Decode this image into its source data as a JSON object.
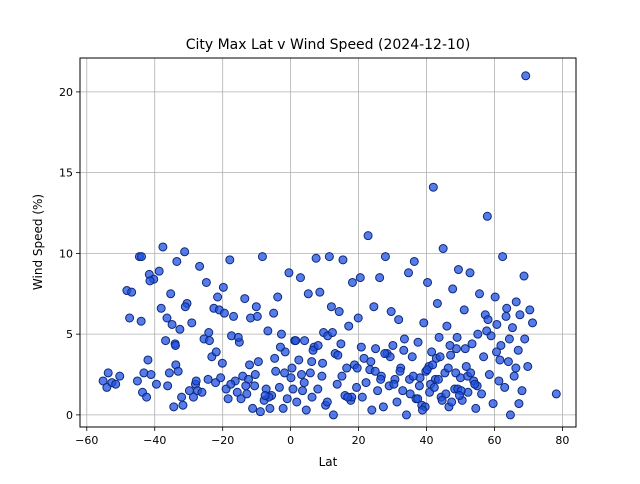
{
  "chart_data": {
    "type": "scatter",
    "title": "City Max Lat v Wind Speed (2024-12-10)",
    "xlabel": "Lat",
    "ylabel": "Wind Speed (%)",
    "xlim": [
      -62,
      84
    ],
    "ylim": [
      -0.75,
      22.1
    ],
    "xticks": [
      -60,
      -40,
      -20,
      0,
      20,
      40,
      60,
      80
    ],
    "yticks": [
      0,
      5,
      10,
      15,
      20
    ],
    "grid": true,
    "legend": "none",
    "marker_face_color": "#1f4fe0",
    "marker_edge_color": "#0d2a7a",
    "x": [
      -55.2,
      -54.1,
      -52.6,
      -51.5,
      -50.3,
      -48.2,
      -47.4,
      -46.8,
      -45.1,
      -44.5,
      -44.0,
      -43.6,
      -43.2,
      -42.4,
      -42.0,
      -41.6,
      -41.1,
      -40.3,
      -39.5,
      -38.7,
      -38.1,
      -37.6,
      -36.8,
      -36.2,
      -35.7,
      -35.3,
      -34.9,
      -34.4,
      -34.0,
      -33.8,
      -33.5,
      -33.1,
      -32.6,
      -32.1,
      -31.7,
      -31.2,
      -30.5,
      -29.8,
      -29.1,
      -28.6,
      -28.0,
      -27.4,
      -26.8,
      -26.1,
      -25.5,
      -24.8,
      -24.3,
      -23.9,
      -23.2,
      -22.6,
      -22.1,
      -21.5,
      -21.0,
      -20.6,
      -20.1,
      -19.5,
      -19.0,
      -18.4,
      -17.9,
      -17.4,
      -16.8,
      -16.3,
      -15.7,
      -15.1,
      -14.6,
      -14.1,
      -13.5,
      -12.9,
      -12.4,
      -11.8,
      -11.2,
      -10.6,
      -10.1,
      -9.5,
      -8.9,
      -8.3,
      -7.8,
      -7.2,
      -6.7,
      -6.1,
      -5.6,
      -5.0,
      -4.4,
      -3.8,
      -3.3,
      -2.7,
      -2.2,
      -1.6,
      -1.0,
      -0.5,
      0.1,
      0.7,
      1.2,
      1.8,
      2.4,
      2.9,
      3.5,
      4.1,
      4.6,
      5.2,
      5.8,
      6.3,
      6.9,
      7.5,
      8.0,
      8.6,
      9.2,
      9.7,
      10.3,
      10.9,
      11.4,
      12.0,
      12.6,
      13.1,
      13.7,
      14.3,
      14.8,
      15.4,
      16.0,
      16.5,
      17.1,
      17.7,
      18.2,
      18.8,
      19.4,
      19.9,
      20.5,
      21.1,
      21.6,
      22.2,
      22.8,
      23.3,
      23.9,
      24.5,
      25.0,
      25.6,
      26.2,
      26.7,
      27.3,
      27.9,
      28.4,
      29.0,
      29.6,
      30.1,
      30.7,
      31.3,
      31.8,
      32.4,
      33.0,
      33.5,
      34.1,
      34.7,
      35.2,
      35.8,
      36.4,
      36.9,
      37.5,
      38.1,
      38.6,
      39.2,
      39.8,
      40.3,
      40.9,
      41.5,
      42.0,
      42.6,
      43.2,
      43.7,
      44.3,
      44.9,
      45.4,
      46.0,
      46.6,
      47.1,
      47.7,
      48.3,
      48.8,
      49.4,
      50.0,
      50.5,
      51.1,
      51.7,
      52.2,
      52.8,
      53.4,
      53.9,
      54.5,
      55.1,
      55.6,
      56.2,
      56.8,
      57.3,
      57.9,
      58.5,
      59.0,
      59.6,
      60.2,
      60.7,
      61.3,
      61.9,
      62.4,
      63.0,
      63.6,
      64.1,
      64.7,
      65.3,
      65.8,
      66.4,
      67.0,
      67.5,
      68.1,
      68.7,
      69.2,
      69.8,
      70.4,
      71.2,
      78.2,
      -53.7,
      -43.9,
      -41.4,
      -36.4,
      -33.9,
      -31.0,
      -27.8,
      -24.1,
      -21.9,
      -19.8,
      -17.6,
      -15.4,
      -12.1,
      -9.8,
      -6.4,
      -3.0,
      0.4,
      3.2,
      6.6,
      9.4,
      12.3,
      15.1,
      18.0,
      20.8,
      23.6,
      26.5,
      29.3,
      32.2,
      35.0,
      37.9,
      40.7,
      43.5,
      46.4,
      49.2,
      52.1,
      54.9,
      57.7,
      60.6,
      63.4,
      66.3,
      68.9,
      37.4,
      40.2,
      42.9,
      45.7,
      48.6,
      51.4,
      54.2,
      39.6,
      41.8,
      44.6,
      47.4,
      50.2,
      53.0,
      38.8,
      41.2,
      44.0,
      46.9,
      49.7,
      24.9,
      27.7,
      30.4,
      33.3,
      36.1,
      13.9,
      16.8,
      19.6,
      8.1,
      10.8,
      4.0,
      6.2,
      -1.8,
      1.5,
      -7.5,
      -4.7,
      -13.2,
      -10.4,
      58.1,
      61.6,
      64.4,
      67.2,
      42.3,
      49.0
    ],
    "y": [
      2.1,
      1.7,
      2.0,
      1.9,
      2.4,
      7.7,
      6.0,
      7.6,
      2.1,
      9.8,
      5.8,
      1.4,
      2.6,
      1.1,
      3.4,
      8.7,
      2.5,
      8.4,
      1.9,
      8.9,
      6.6,
      10.4,
      4.6,
      1.8,
      2.6,
      7.5,
      5.6,
      0.5,
      4.4,
      3.1,
      9.5,
      2.7,
      5.3,
      1.1,
      0.6,
      10.1,
      6.9,
      1.5,
      5.7,
      1.1,
      1.9,
      1.5,
      9.2,
      1.4,
      4.7,
      8.2,
      2.2,
      4.6,
      3.6,
      6.6,
      2.0,
      7.3,
      6.5,
      2.3,
      3.2,
      6.3,
      1.6,
      1.0,
      9.6,
      4.9,
      6.1,
      2.1,
      1.4,
      4.5,
      1.0,
      2.4,
      7.2,
      1.3,
      2.2,
      6.0,
      0.4,
      1.8,
      6.7,
      3.3,
      0.2,
      9.8,
      0.9,
      1.6,
      5.2,
      0.4,
      1.2,
      6.3,
      2.7,
      7.3,
      1.7,
      5.0,
      0.4,
      3.9,
      1.0,
      8.8,
      2.3,
      1.6,
      4.6,
      0.8,
      3.4,
      8.5,
      1.5,
      4.6,
      0.3,
      7.5,
      2.6,
      1.1,
      4.2,
      9.7,
      1.6,
      7.6,
      2.4,
      5.1,
      0.6,
      4.9,
      9.8,
      6.7,
      0.0,
      3.8,
      1.9,
      6.4,
      4.4,
      9.6,
      1.2,
      2.9,
      5.5,
      0.9,
      8.2,
      3.1,
      1.7,
      6.0,
      8.5,
      1.1,
      3.5,
      2.0,
      11.1,
      2.8,
      0.3,
      6.7,
      4.1,
      1.5,
      8.5,
      2.4,
      0.5,
      9.8,
      3.8,
      1.8,
      6.4,
      4.3,
      2.2,
      0.8,
      5.9,
      2.9,
      1.5,
      4.7,
      0.0,
      8.8,
      1.3,
      3.6,
      9.5,
      1.0,
      4.5,
      2.3,
      0.6,
      5.7,
      2.7,
      8.2,
      1.4,
      3.9,
      14.1,
      2.2,
      6.9,
      4.8,
      1.1,
      10.3,
      2.6,
      5.5,
      0.5,
      3.7,
      7.8,
      1.6,
      4.1,
      9.0,
      2.3,
      0.9,
      6.5,
      3.0,
      1.4,
      8.8,
      4.4,
      2.1,
      0.4,
      5.0,
      7.5,
      1.3,
      3.6,
      6.2,
      12.3,
      2.5,
      4.9,
      0.7,
      7.3,
      5.6,
      2.1,
      4.3,
      9.8,
      1.7,
      6.6,
      3.3,
      0.0,
      5.4,
      2.4,
      7.0,
      4.0,
      6.2,
      1.5,
      8.6,
      21.0,
      3.0,
      6.5,
      5.7,
      1.3,
      2.6,
      9.8,
      8.3,
      6.0,
      4.3,
      6.7,
      2.1,
      5.1,
      3.9,
      7.9,
      1.9,
      4.8,
      3.1,
      6.1,
      1.1,
      4.2,
      2.9,
      2.5,
      4.0,
      3.2,
      5.1,
      2.4,
      1.1,
      4.2,
      3.3,
      2.2,
      3.6,
      2.7,
      2.2,
      1.8,
      3.0,
      2.2,
      2.9,
      1.6,
      2.4,
      1.8,
      5.2,
      3.9,
      6.1,
      2.9,
      4.7,
      1.0,
      2.8,
      3.5,
      1.3,
      2.6,
      4.1,
      1.9,
      0.5,
      3.1,
      0.9,
      0.8,
      1.5,
      2.6,
      0.3,
      1.9,
      3.6,
      4.3,
      1.2,
      2.7,
      3.8,
      1.9,
      4.0,
      2.4,
      3.7,
      1.1,
      2.9,
      4.3,
      0.8,
      2.0,
      3.3,
      2.6,
      4.6,
      1.2,
      3.5,
      1.8,
      2.5,
      5.9,
      3.4,
      4.7,
      0.7,
      1.7,
      4.8
    ]
  }
}
